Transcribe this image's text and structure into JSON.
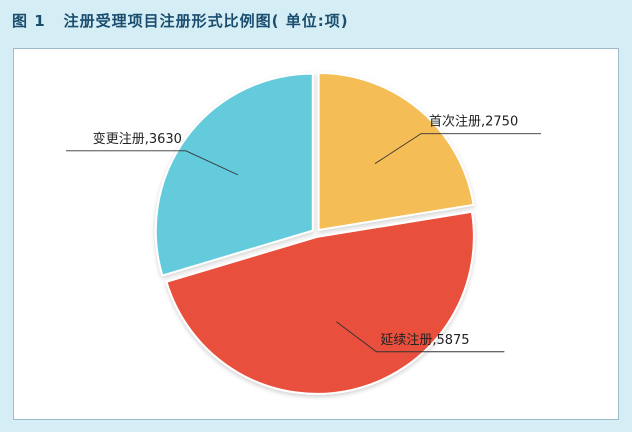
{
  "figure": {
    "number": "图 1",
    "title": "注册受理项目注册形式比例图( 单位:项)"
  },
  "chart_data": {
    "type": "pie",
    "slices": [
      {
        "label": "首次注册",
        "value": 2750,
        "text": "首次注册,2750",
        "color": "#f4bd55"
      },
      {
        "label": "延续注册",
        "value": 5875,
        "text": "延续注册,5875",
        "color": "#e9503d"
      },
      {
        "label": "变更注册",
        "value": 3630,
        "text": "变更注册,3630",
        "color": "#63cbdc"
      }
    ]
  }
}
